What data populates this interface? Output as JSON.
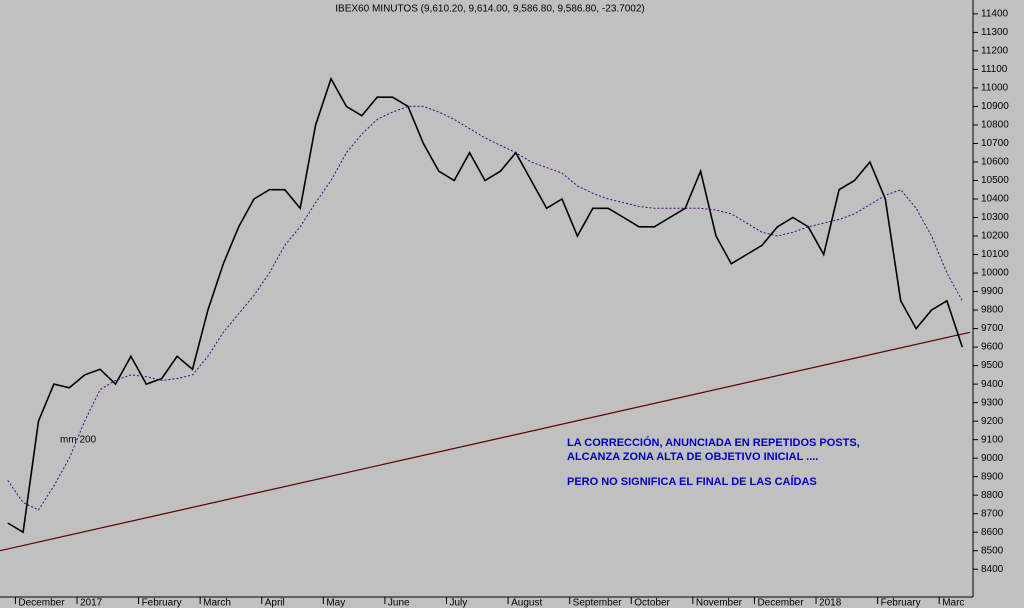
{
  "chart_data": {
    "type": "line",
    "title": "IBEX60 MINUTOS (9,610.20, 9,614.00, 9,586.80, 9,586.80, -23.7002)",
    "annotations": [
      "LA CORRECCIÓN, ANUNCIADA EN REPETIDOS POSTS,",
      "ALCANZA ZONA ALTA DE OBJETIVO INICIAL ....",
      "PERO NO SIGNIFICA EL FINAL DE LAS CAÍDAS"
    ],
    "categories": [
      null,
      "December",
      null,
      null,
      null,
      "2017",
      null,
      null,
      null,
      "February",
      null,
      null,
      null,
      "March",
      null,
      null,
      null,
      "April",
      null,
      null,
      null,
      "May",
      null,
      null,
      null,
      "June",
      null,
      null,
      null,
      "July",
      null,
      null,
      null,
      "August",
      null,
      null,
      null,
      "September",
      null,
      null,
      null,
      "October",
      null,
      null,
      null,
      "November",
      null,
      null,
      null,
      "December",
      null,
      null,
      null,
      "2018",
      null,
      null,
      null,
      "February",
      null,
      null,
      null,
      "Marc",
      null
    ],
    "series": [
      {
        "name": "IBEX",
        "color": "#000000",
        "values": [
          8650,
          8600,
          9200,
          9400,
          9380,
          9450,
          9480,
          9400,
          9550,
          9400,
          9430,
          9550,
          9480,
          9800,
          10050,
          10250,
          10400,
          10450,
          10450,
          10350,
          10800,
          11050,
          10900,
          10850,
          10950,
          10950,
          10900,
          10700,
          10550,
          10500,
          10650,
          10500,
          10550,
          10650,
          10500,
          10350,
          10400,
          10200,
          10350,
          10350,
          10300,
          10250,
          10250,
          10300,
          10350,
          10550,
          10200,
          10050,
          10100,
          10150,
          10250,
          10300,
          10250,
          10100,
          10450,
          10500,
          10600,
          10400,
          9850,
          9700,
          9800,
          9850,
          9600
        ]
      },
      {
        "name": "mm 200",
        "color": "#400080",
        "values": [
          8880,
          8760,
          8720,
          8850,
          9000,
          9200,
          9370,
          9420,
          9450,
          9440,
          9420,
          9430,
          9450,
          9550,
          9680,
          9780,
          9880,
          10000,
          10150,
          10250,
          10380,
          10500,
          10650,
          10750,
          10830,
          10870,
          10900,
          10900,
          10870,
          10830,
          10780,
          10730,
          10690,
          10650,
          10600,
          10570,
          10540,
          10470,
          10430,
          10400,
          10380,
          10360,
          10350,
          10350,
          10350,
          10350,
          10340,
          10320,
          10270,
          10220,
          10200,
          10220,
          10250,
          10270,
          10290,
          10320,
          10370,
          10420,
          10450,
          10350,
          10200,
          10000,
          9850
        ]
      }
    ],
    "trendline": {
      "values": [
        8500,
        9680
      ],
      "color": "#5a0000"
    },
    "ylim": [
      8250,
      11475
    ],
    "yticks": [
      8400,
      8500,
      8600,
      8700,
      8800,
      8900,
      9000,
      9100,
      9200,
      9300,
      9400,
      9500,
      9600,
      9700,
      9800,
      9900,
      10000,
      10100,
      10200,
      10300,
      10400,
      10500,
      10600,
      10700,
      10800,
      10900,
      11000,
      11100,
      11200,
      11300,
      11400
    ]
  }
}
